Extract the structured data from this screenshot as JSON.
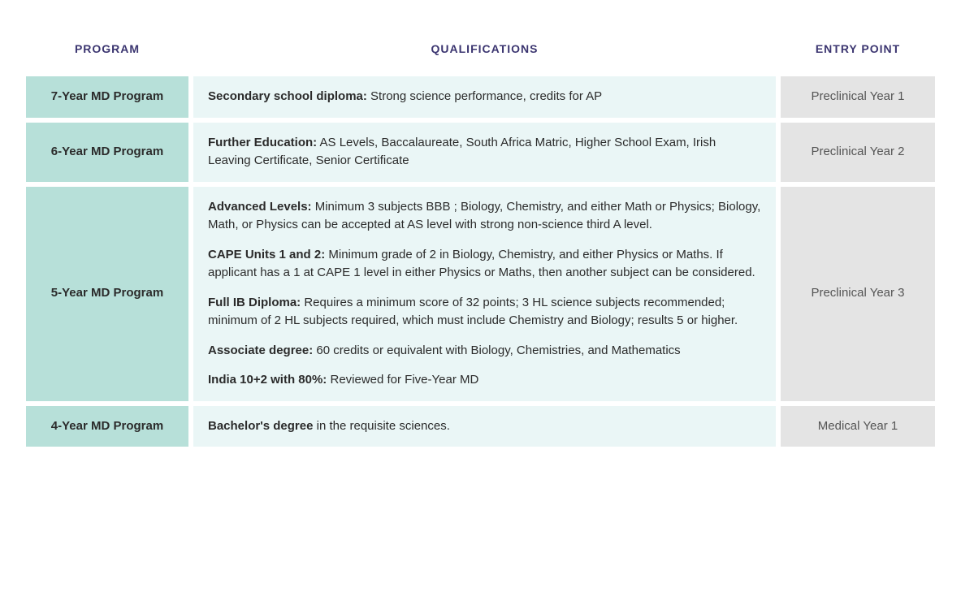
{
  "colors": {
    "header_text": "#3b3570",
    "program_bg": "#b7e0d9",
    "qual_bg": "#eaf6f6",
    "entry_bg": "#e4e4e4",
    "body_text": "#2b2b2b",
    "entry_text": "#555555"
  },
  "headers": {
    "program": "PROGRAM",
    "qualifications": "QUALIFICATIONS",
    "entry_point": "ENTRY POINT"
  },
  "rows": [
    {
      "program": "7-Year MD Program",
      "entry": "Preclinical Year 1",
      "quals": [
        {
          "lead": "Secondary school diploma:",
          "rest": " Strong science performance, credits for AP"
        }
      ]
    },
    {
      "program": "6-Year MD Program",
      "entry": "Preclinical Year 2",
      "quals": [
        {
          "lead": "Further Education:",
          "rest": " AS Levels, Baccalaureate, South Africa Matric, Higher School Exam, Irish Leaving Certificate, Senior Certificate"
        }
      ]
    },
    {
      "program": "5-Year MD Program",
      "entry": "Preclinical Year 3",
      "quals": [
        {
          "lead": "Advanced Levels:",
          "rest": " Minimum 3 subjects BBB ; Biology, Chemistry, and either Math or Physics; Biology, Math, or Physics can be accepted at AS level with strong non-science third A level."
        },
        {
          "lead": "CAPE Units 1 and 2:",
          "rest": " Minimum grade of 2 in Biology, Chemistry, and either Physics or Maths. If applicant has a 1 at CAPE 1 level in either Physics or Maths, then another subject can be considered."
        },
        {
          "lead": "Full IB Diploma:",
          "rest": " Requires a minimum score of 32 points; 3 HL science subjects recommended; minimum of 2 HL subjects required, which must include Chemistry and Biology; results 5 or higher."
        },
        {
          "lead": "Associate degree:",
          "rest": " 60 credits or equivalent with Biology, Chemistries, and Mathematics"
        },
        {
          "lead": "India 10+2 with 80%:",
          "rest": " Reviewed for Five-Year MD"
        }
      ]
    },
    {
      "program": "4-Year MD Program",
      "entry": "Medical Year 1",
      "quals": [
        {
          "lead": "Bachelor's degree",
          "rest": " in the requisite sciences."
        }
      ]
    }
  ]
}
